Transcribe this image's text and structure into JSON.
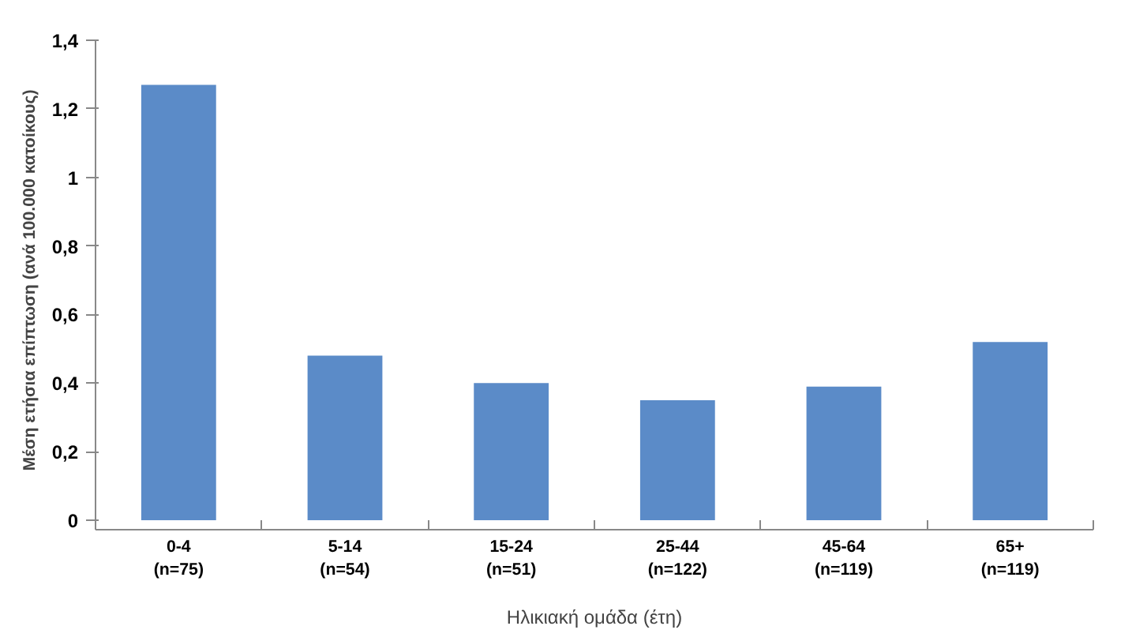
{
  "chart_data": {
    "type": "bar",
    "xlabel": "Ηλικιακή ομάδα (έτη)",
    "ylabel": "Μέση ετήσια επίπτωση (ανά 100.000 κατοίκους)",
    "categories": [
      "0-4\n(n=75)",
      "5-14\n(n=54)",
      "15-24\n(n=51)",
      "25-44\n(n=122)",
      "45-64\n(n=119)",
      "65+\n(n=119)"
    ],
    "values": [
      1.27,
      0.48,
      0.4,
      0.35,
      0.39,
      0.52
    ],
    "color": "#5b8bc8",
    "ylim": [
      0,
      1.4
    ],
    "yticks": [
      0,
      {
        "value": 0.2,
        "label": "0,2"
      },
      {
        "value": 0.4,
        "label": "0,4"
      },
      {
        "value": 0.6,
        "label": "0,6"
      },
      {
        "value": 0.8,
        "label": "0,8"
      },
      1,
      {
        "value": 1.2,
        "label": "1,2"
      },
      {
        "value": 1.4,
        "label": "1,4"
      }
    ],
    "grid": false
  }
}
